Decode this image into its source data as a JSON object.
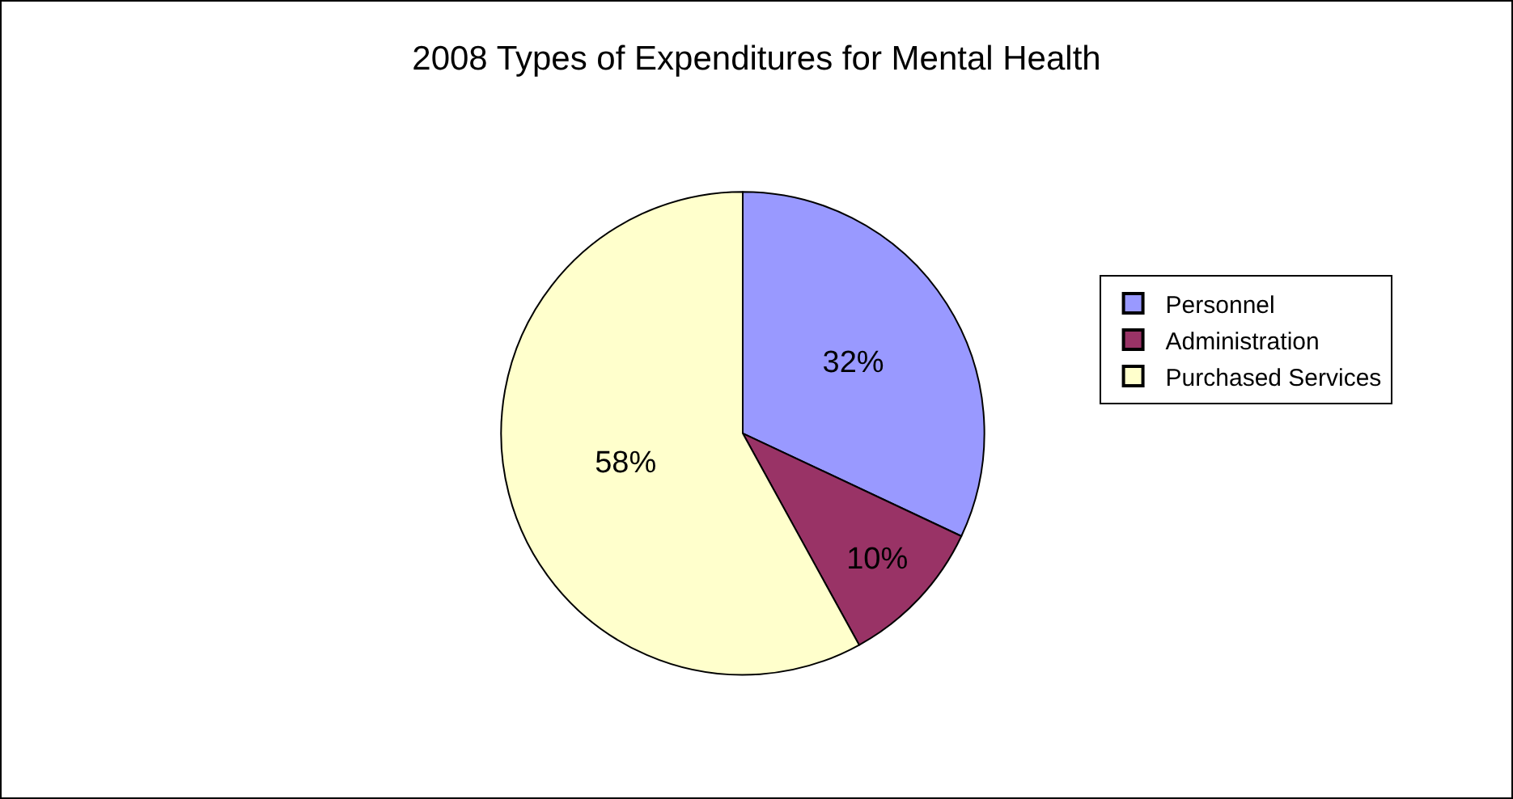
{
  "chart_data": {
    "type": "pie",
    "title": "2008 Types of Expenditures for Mental Health",
    "categories": [
      "Personnel",
      "Administration",
      "Purchased Services"
    ],
    "values": [
      32,
      10,
      58
    ],
    "colors": [
      "#9999ff",
      "#993366",
      "#ffffcc"
    ],
    "value_labels": [
      "32%",
      "10%",
      "58%"
    ],
    "legend": "right"
  }
}
